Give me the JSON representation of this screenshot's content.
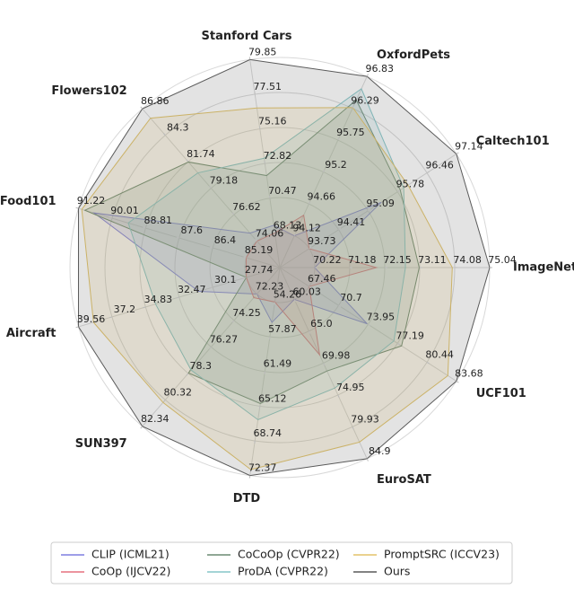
{
  "chart_data": {
    "type": "radar",
    "axes": [
      {
        "name": "ImageNet",
        "lim": [
          69.26,
          75.04
        ],
        "ticks": [
          70.22,
          71.18,
          72.15,
          73.11,
          74.08,
          75.04
        ]
      },
      {
        "name": "Caltech101",
        "lim": [
          93.05,
          97.14
        ],
        "ticks": [
          93.73,
          94.41,
          95.09,
          95.78,
          96.46,
          97.14
        ]
      },
      {
        "name": "OxfordPets",
        "lim": [
          93.58,
          96.83
        ],
        "ticks": [
          94.12,
          94.66,
          95.2,
          95.75,
          96.29,
          96.83
        ]
      },
      {
        "name": "Stanford Cars",
        "lim": [
          65.79,
          79.85
        ],
        "ticks": [
          68.13,
          70.47,
          72.82,
          75.16,
          77.51,
          79.85
        ]
      },
      {
        "name": "Flowers102",
        "lim": [
          71.5,
          86.86
        ],
        "ticks": [
          74.06,
          76.62,
          79.18,
          81.74,
          84.3,
          86.86
        ]
      },
      {
        "name": "Food101",
        "lim": [
          83.98,
          91.22
        ],
        "ticks": [
          85.19,
          86.4,
          87.6,
          88.81,
          90.01,
          91.22
        ]
      },
      {
        "name": "Aircraft",
        "lim": [
          25.38,
          39.56
        ],
        "ticks": [
          27.74,
          30.1,
          32.47,
          34.83,
          37.2,
          39.56
        ]
      },
      {
        "name": "SUN397",
        "lim": [
          70.21,
          82.34
        ],
        "ticks": [
          72.23,
          74.25,
          76.27,
          78.3,
          80.32,
          82.34
        ]
      },
      {
        "name": "DTD",
        "lim": [
          50.64,
          72.37
        ],
        "ticks": [
          54.26,
          57.87,
          61.49,
          65.12,
          68.74,
          72.37
        ]
      },
      {
        "name": "EuroSAT",
        "lim": [
          55.06,
          84.9
        ],
        "ticks": [
          60.03,
          {
            "value": 65,
            "label": "65.0"
          },
          69.98,
          74.95,
          79.93,
          84.9
        ]
      },
      {
        "name": "UCF101",
        "lim": [
          64.22,
          83.68
        ],
        "ticks": [
          67.46,
          70.7,
          73.95,
          77.19,
          80.44,
          83.68
        ]
      }
    ],
    "series": [
      {
        "name": "CLIP (ICML21)",
        "color": "#7f7fe0",
        "values": [
          70.22,
          95.4,
          94.12,
          68.65,
          74.83,
          90.66,
          31.09,
          72.23,
          56.37,
          60.03,
          73.85
        ]
      },
      {
        "name": "CoOp (IJCV22)",
        "color": "#e5707f",
        "values": [
          71.92,
          93.73,
          94.47,
          68.13,
          74.06,
          85.19,
          27.74,
          72.51,
          54.24,
          68.69,
          67.46
        ]
      },
      {
        "name": "CoCoOp (CVPR22)",
        "color": "#6b8a72",
        "values": [
          73.1,
          95.84,
          96.43,
          72.01,
          81.71,
          90.99,
          27.74,
          78.27,
          64.85,
          71.21,
          77.64
        ]
      },
      {
        "name": "ProDA (CVPR22)",
        "color": "#86c6c8",
        "values": [
          72.72,
          95.92,
          96.62,
          73.18,
          80.66,
          89.43,
          34.13,
          78.04,
          66.54,
          73.88,
          76.79
        ]
      },
      {
        "name": "PromptSRC (ICCV23)",
        "color": "#e3c46a",
        "values": [
          74.01,
          96.02,
          96.3,
          76.58,
          85.95,
          91.1,
          38.5,
          80.52,
          71.75,
          82.32,
          82.74
        ]
      },
      {
        "name": "Ours",
        "color": "#5a5a5a",
        "values": [
          75.04,
          97.14,
          96.83,
          79.85,
          86.86,
          91.22,
          39.56,
          82.34,
          72.37,
          84.9,
          83.68
        ]
      }
    ]
  }
}
